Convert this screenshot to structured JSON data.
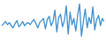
{
  "chart_data": {
    "type": "line",
    "color": "#3d8fd1",
    "tick_labels": false,
    "x": [
      1,
      2,
      3,
      4,
      5,
      6,
      7,
      8,
      9,
      10,
      11,
      12,
      13,
      14,
      15,
      16,
      17,
      18,
      19,
      20,
      21,
      22,
      23,
      24,
      25,
      26,
      27,
      28,
      29,
      30,
      31,
      32,
      33,
      34,
      35,
      36,
      37,
      38,
      39,
      40,
      41,
      42,
      43,
      44,
      45,
      46,
      47,
      48,
      49,
      50,
      51,
      52,
      53,
      54,
      55
    ],
    "values": [
      20,
      22,
      24,
      21,
      23,
      20,
      18,
      22,
      25,
      19,
      21,
      24,
      20,
      22,
      23,
      21,
      24,
      26,
      22,
      18,
      23,
      25,
      27,
      17,
      26,
      29,
      20,
      24,
      35,
      14,
      28,
      31,
      19,
      25,
      39,
      12,
      33,
      21,
      27,
      15,
      30,
      41,
      10,
      24,
      36,
      18,
      28,
      22,
      38,
      16,
      26,
      30,
      20,
      27,
      24
    ],
    "xlim": [
      1,
      55
    ],
    "ylim": [
      8,
      43
    ]
  }
}
